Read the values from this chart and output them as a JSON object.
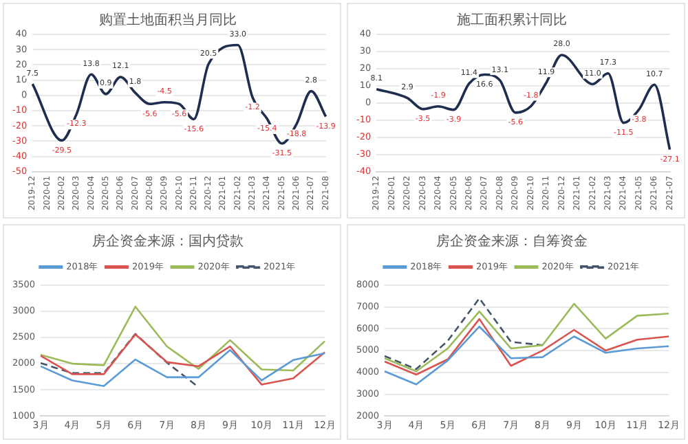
{
  "chart_data": [
    {
      "type": "line",
      "title": "购置土地面积当月同比",
      "categories": [
        "2019-12",
        "2020-01",
        "2020-02",
        "2020-03",
        "2020-04",
        "2020-05",
        "2020-06",
        "2020-07",
        "2020-08",
        "2020-09",
        "2020-10",
        "2020-11",
        "2020-12",
        "2021-01",
        "2021-02",
        "2021-03",
        "2021-04",
        "2021-05",
        "2021-06",
        "2021-07",
        "2021-08"
      ],
      "values": [
        7.5,
        null,
        -29.5,
        -12.3,
        13.8,
        0.9,
        12.1,
        1.8,
        -5.6,
        -4.5,
        -5.6,
        -15.6,
        20.5,
        null,
        33.0,
        -1.2,
        -15.4,
        -31.5,
        -18.8,
        2.8,
        -13.9
      ],
      "value_labels": [
        "7.5",
        null,
        "-29.5",
        "-12.3",
        "13.8",
        "0.9",
        "12.1",
        "1.8",
        "-5.6",
        "-4.5",
        "-5.6",
        "-15.6",
        "20.5",
        null,
        "33.0",
        "-1.2",
        "-15.4",
        "-31.5",
        "-18.8",
        "2.8",
        "-13.9"
      ],
      "color": "#1f2d4e",
      "ylim": [
        -50,
        40
      ],
      "yticks": [
        -50,
        -40,
        -30,
        -20,
        -10,
        0,
        10,
        20,
        30,
        40
      ],
      "grid": "y",
      "marker": "none"
    },
    {
      "type": "line",
      "title": "施工面积累计同比",
      "categories": [
        "2019-12",
        "2020-01",
        "2020-02",
        "2020-03",
        "2020-04",
        "2020-05",
        "2020-06",
        "2020-07",
        "2020-08",
        "2020-09",
        "2020-10",
        "2020-11",
        "2020-12",
        "2021-01",
        "2021-02",
        "2021-03",
        "2021-04",
        "2021-05",
        "2021-06",
        "2021-07"
      ],
      "values": [
        8.1,
        null,
        2.9,
        -3.5,
        -1.9,
        -3.9,
        11.4,
        16.6,
        13.1,
        -5.6,
        -1.8,
        11.9,
        28.0,
        null,
        11.0,
        17.3,
        -11.5,
        -3.8,
        10.7,
        -27.1
      ],
      "value_labels": [
        "8.1",
        null,
        "2.9",
        "-3.5",
        "-1.9",
        "-3.9",
        "11.4",
        "16.6",
        "13.1",
        "-5.6",
        "-1.8",
        "11.9",
        "28.0",
        null,
        "11.0",
        "17.3",
        "-11.5",
        "-3.8",
        "10.7",
        "-27.1"
      ],
      "color": "#1f2d4e",
      "ylim": [
        -40,
        40
      ],
      "yticks": [
        -40,
        -30,
        -20,
        -10,
        0,
        10,
        20,
        30,
        40
      ],
      "grid": "y",
      "marker": "none"
    },
    {
      "type": "line",
      "title": "房企资金来源：国内贷款",
      "categories": [
        "3月",
        "4月",
        "5月",
        "6月",
        "7月",
        "8月",
        "9月",
        "10月",
        "11月",
        "12月"
      ],
      "series": [
        {
          "name": "2018年",
          "color": "#5b9bd5",
          "values": [
            1950,
            1680,
            1570,
            2080,
            1740,
            1740,
            2260,
            1680,
            2070,
            2200
          ]
        },
        {
          "name": "2019年",
          "color": "#d9534f",
          "values": [
            2150,
            1800,
            1800,
            2560,
            2030,
            1950,
            2330,
            1600,
            1720,
            2220
          ]
        },
        {
          "name": "2020年",
          "color": "#9bbb59",
          "values": [
            2170,
            2000,
            1970,
            3090,
            2330,
            1900,
            2450,
            1890,
            1870,
            2430
          ]
        },
        {
          "name": "2021年",
          "color": "#44546a",
          "line_style": "dashed",
          "values": [
            2010,
            1820,
            1820,
            2570,
            2020,
            1550,
            null,
            null,
            null,
            null
          ]
        }
      ],
      "ylim": [
        1000,
        3500
      ],
      "yticks": [
        1000,
        1500,
        2000,
        2500,
        3000,
        3500
      ],
      "grid": "y",
      "legend": "top",
      "marker": "none"
    },
    {
      "type": "line",
      "title": "房企资金来源：自筹资金",
      "categories": [
        "3月",
        "4月",
        "5月",
        "6月",
        "7月",
        "8月",
        "9月",
        "10月",
        "11月",
        "12月"
      ],
      "series": [
        {
          "name": "2018年",
          "color": "#5b9bd5",
          "values": [
            4050,
            3450,
            4550,
            6100,
            4650,
            4700,
            5650,
            4900,
            5100,
            5200
          ]
        },
        {
          "name": "2019年",
          "color": "#d9534f",
          "values": [
            4500,
            3900,
            4600,
            6450,
            4300,
            5000,
            5950,
            5000,
            5500,
            5650
          ]
        },
        {
          "name": "2020年",
          "color": "#9bbb59",
          "values": [
            4650,
            4050,
            5100,
            6800,
            5100,
            5250,
            7150,
            5550,
            6600,
            6700
          ]
        },
        {
          "name": "2021年",
          "color": "#44546a",
          "line_style": "dashed",
          "values": [
            4750,
            4150,
            5450,
            7400,
            5400,
            5250,
            null,
            null,
            null,
            null
          ]
        }
      ],
      "ylim": [
        2000,
        8000
      ],
      "yticks": [
        2000,
        3000,
        4000,
        5000,
        6000,
        7000,
        8000
      ],
      "grid": "y",
      "legend": "top",
      "marker": "none"
    }
  ]
}
